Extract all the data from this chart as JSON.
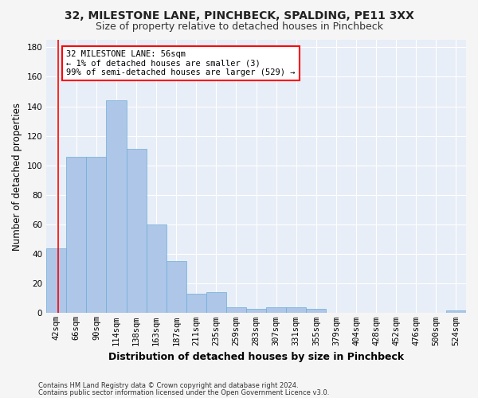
{
  "title1": "32, MILESTONE LANE, PINCHBECK, SPALDING, PE11 3XX",
  "title2": "Size of property relative to detached houses in Pinchbeck",
  "xlabel": "Distribution of detached houses by size in Pinchbeck",
  "ylabel": "Number of detached properties",
  "categories": [
    "42sqm",
    "66sqm",
    "90sqm",
    "114sqm",
    "138sqm",
    "163sqm",
    "187sqm",
    "211sqm",
    "235sqm",
    "259sqm",
    "283sqm",
    "307sqm",
    "331sqm",
    "355sqm",
    "379sqm",
    "404sqm",
    "428sqm",
    "452sqm",
    "476sqm",
    "500sqm",
    "524sqm"
  ],
  "values": [
    44,
    106,
    106,
    144,
    111,
    60,
    35,
    13,
    14,
    4,
    3,
    4,
    4,
    3,
    0,
    0,
    0,
    0,
    0,
    0,
    2
  ],
  "bar_color": "#aec6e8",
  "bar_edge_color": "#6baed6",
  "background_color": "#e8eef7",
  "grid_color": "#ffffff",
  "annotation_text_line1": "32 MILESTONE LANE: 56sqm",
  "annotation_text_line2": "← 1% of detached houses are smaller (3)",
  "annotation_text_line3": "99% of semi-detached houses are larger (529) →",
  "ylim": [
    0,
    185
  ],
  "yticks": [
    0,
    20,
    40,
    60,
    80,
    100,
    120,
    140,
    160,
    180
  ],
  "footnote1": "Contains HM Land Registry data © Crown copyright and database right 2024.",
  "footnote2": "Contains public sector information licensed under the Open Government Licence v3.0.",
  "title1_fontsize": 10,
  "title2_fontsize": 9,
  "tick_fontsize": 7.5,
  "ylabel_fontsize": 8.5,
  "xlabel_fontsize": 9,
  "footnote_fontsize": 6.0,
  "ann_fontsize": 7.5
}
